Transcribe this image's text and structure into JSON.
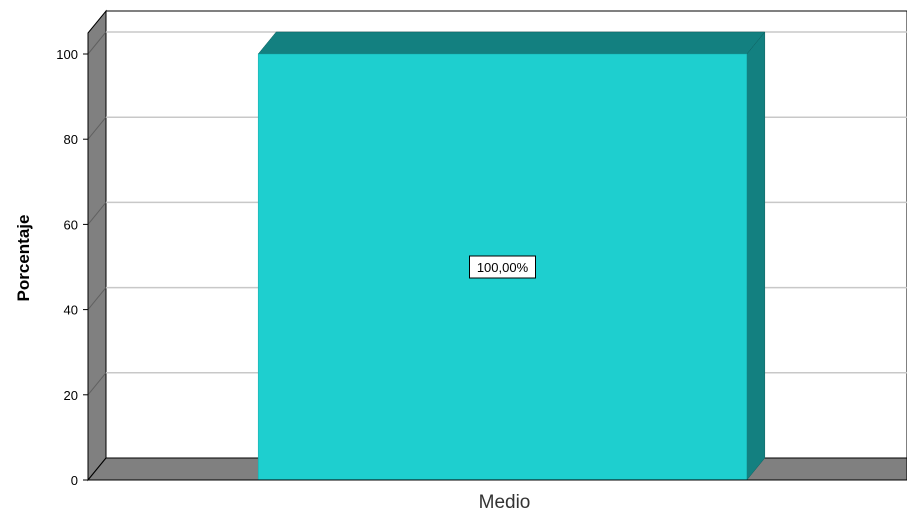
{
  "chart_data": {
    "type": "bar",
    "categories": [
      "Medio"
    ],
    "values": [
      100
    ],
    "data_labels": [
      "100,00%"
    ],
    "title": "",
    "xlabel": "",
    "ylabel": "Porcentaje",
    "ylim": [
      0,
      100
    ],
    "yticks": [
      "0",
      "20",
      "40",
      "60",
      "80",
      "100"
    ],
    "grid": true,
    "three_d": true,
    "colors": {
      "bar_front": "#1ECFCF",
      "bar_side": "#138080",
      "bar_top": "#138080",
      "wall": "#808080",
      "gridline": "#C8C8C8"
    }
  }
}
